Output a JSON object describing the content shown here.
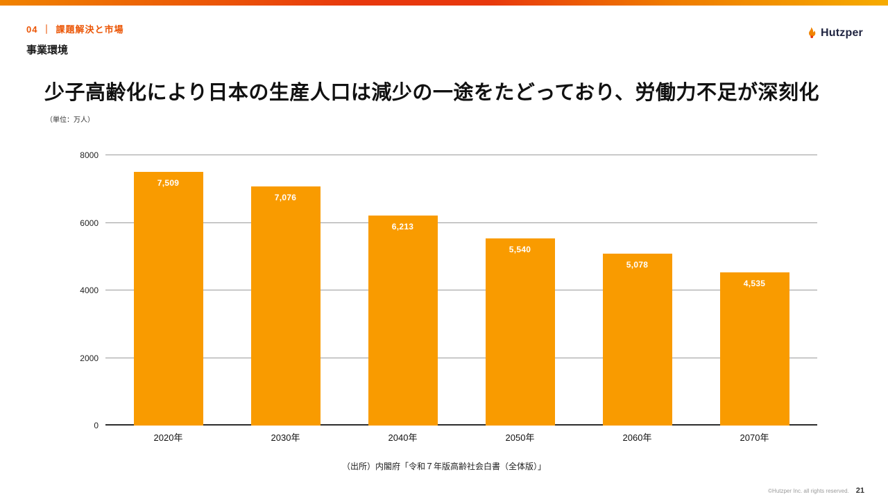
{
  "meta": {
    "accent_color": "#EB5505",
    "bar_color": "#F99B00",
    "value_label_color": "#FFFFFF"
  },
  "header": {
    "section_number": "04",
    "section_divider": "｜",
    "section_title": "課題解決と市場",
    "subtitle": "事業環境",
    "logo_text": "Hutzper"
  },
  "main": {
    "title": "少子高齢化により日本の生産人口は減少の一途をたどっており、労働力不足が深刻化",
    "unit_note": "（単位：万人）",
    "source": "（出所）内閣府「令和７年版高齢社会白書（全体版）」"
  },
  "footer": {
    "copyright": "©Hutzper Inc. all rights reserved.",
    "page_number": "21"
  },
  "chart_data": {
    "type": "bar",
    "categories": [
      "2020年",
      "2030年",
      "2040年",
      "2050年",
      "2060年",
      "2070年"
    ],
    "values": [
      7509,
      7076,
      6213,
      5540,
      5078,
      4535
    ],
    "value_labels": [
      "7,509",
      "7,076",
      "6,213",
      "5,540",
      "5,078",
      "4,535"
    ],
    "title": "",
    "xlabel": "",
    "ylabel": "",
    "unit": "万人",
    "ylim": [
      0,
      8000
    ],
    "yticks": [
      0,
      2000,
      4000,
      6000,
      8000
    ],
    "grid": true,
    "legend": false,
    "bar_color": "#F99B00",
    "label_color": "#FFFFFF"
  }
}
